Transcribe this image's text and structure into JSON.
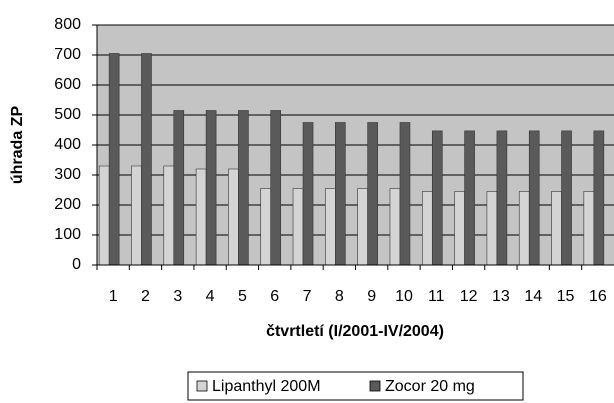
{
  "chart_data": {
    "type": "bar",
    "y_label": "úhrada ZP",
    "x_label": "čtvrtletí (I/2001-IV/2004)",
    "categories": [
      "1",
      "2",
      "3",
      "4",
      "5",
      "6",
      "7",
      "8",
      "9",
      "10",
      "11",
      "12",
      "13",
      "14",
      "15",
      "16"
    ],
    "series": [
      {
        "name": "Lipanthyl 200M",
        "color": "#d4d4d4",
        "values": [
          330,
          330,
          330,
          320,
          320,
          255,
          255,
          255,
          255,
          255,
          245,
          245,
          245,
          245,
          245,
          245
        ]
      },
      {
        "name": "Zocor 20 mg",
        "color": "#5a5a5a",
        "values": [
          705,
          705,
          515,
          515,
          515,
          515,
          475,
          475,
          475,
          475,
          447,
          447,
          447,
          447,
          447,
          447
        ]
      }
    ],
    "ylim": [
      0,
      800
    ],
    "yticks": [
      0,
      100,
      200,
      300,
      400,
      500,
      600,
      700,
      800
    ],
    "grid": true,
    "plot_background": "#c4c4c4",
    "legend": "bottom"
  }
}
